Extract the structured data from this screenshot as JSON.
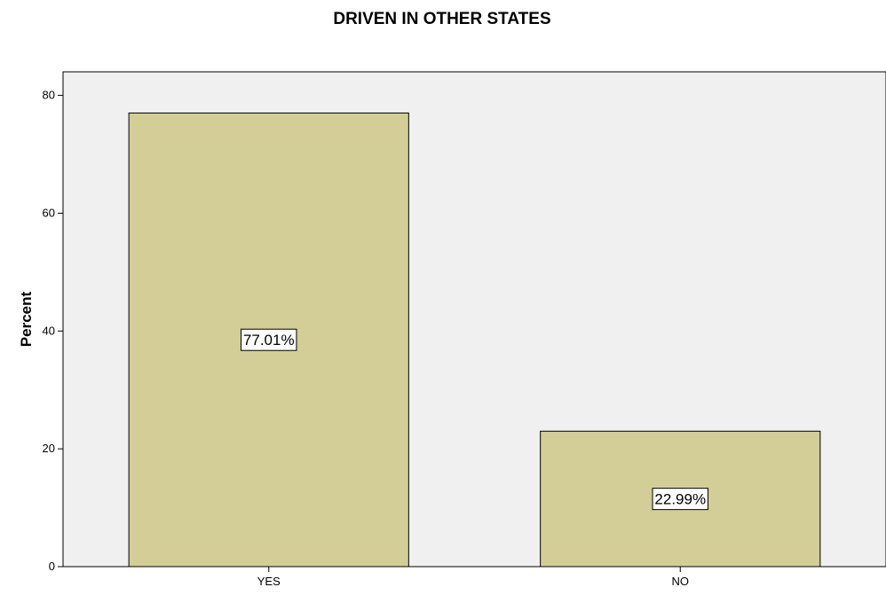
{
  "chart_data": {
    "type": "bar",
    "title": "DRIVEN IN OTHER STATES",
    "xlabel": "",
    "ylabel": "Percent",
    "categories": [
      "YES",
      "NO"
    ],
    "values": [
      77.01,
      22.99
    ],
    "data_labels": [
      "77.01%",
      "22.99%"
    ],
    "ylim": [
      0,
      84
    ],
    "yticks": [
      0,
      20,
      40,
      60,
      80
    ],
    "grid": false,
    "bar_color": "#d3cd97",
    "plot_background": "#f0f0f0"
  }
}
